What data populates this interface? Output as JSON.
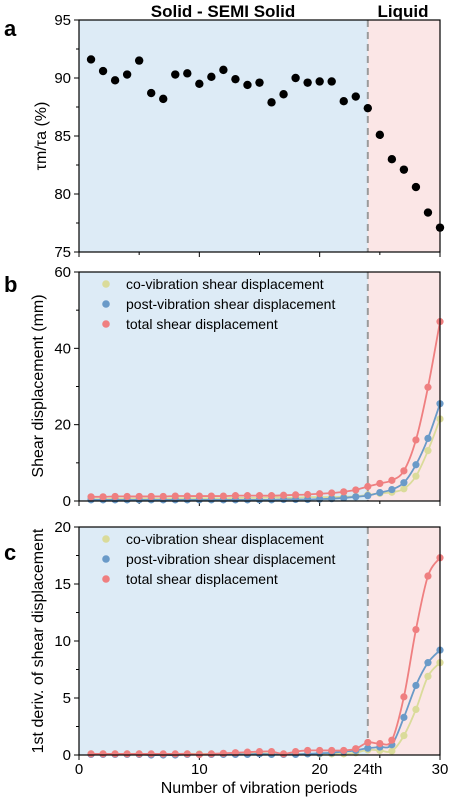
{
  "colors": {
    "solid_region": "#ddebf6",
    "liquid_region": "#fbe6e6",
    "co": "#dadb9a",
    "post": "#6a9ac8",
    "total": "#ef7f80",
    "dashed_line": "#9a9a9a",
    "points_a": "#000000"
  },
  "chart_data": [
    {
      "type": "scatter",
      "panel": "a",
      "region_labels": [
        "Solid - SEMI Solid",
        "Liquid"
      ],
      "boundary_x": 24,
      "xlim": [
        0,
        30
      ],
      "ylim": [
        75,
        95
      ],
      "yticks": [
        75,
        80,
        85,
        90,
        95
      ],
      "ylabel": "τm/τa (%)",
      "series": [
        {
          "x": [
            1,
            2,
            3,
            4,
            5,
            6,
            7,
            8,
            9,
            10,
            11,
            12,
            13,
            14,
            15,
            16,
            17,
            18,
            19,
            20,
            21,
            22,
            23,
            24,
            25,
            26,
            27,
            28,
            29,
            30
          ],
          "values": [
            91.6,
            90.6,
            89.8,
            90.3,
            91.5,
            88.7,
            88.2,
            90.3,
            90.4,
            89.5,
            90.1,
            90.7,
            89.9,
            89.4,
            89.6,
            87.9,
            88.6,
            90.0,
            89.6,
            89.7,
            89.7,
            88.0,
            88.4,
            87.4,
            85.1,
            83.0,
            82.1,
            80.6,
            78.4,
            77.1
          ]
        }
      ]
    },
    {
      "type": "line",
      "panel": "b",
      "boundary_x": 24,
      "xlim": [
        0,
        30
      ],
      "ylim": [
        0,
        60
      ],
      "yticks": [
        0,
        20,
        40,
        60
      ],
      "ylabel": "Shear displacement (mm)",
      "x": [
        1,
        2,
        3,
        4,
        5,
        6,
        7,
        8,
        9,
        10,
        11,
        12,
        13,
        14,
        15,
        16,
        17,
        18,
        19,
        20,
        21,
        22,
        23,
        24,
        25,
        26,
        27,
        28,
        29,
        30
      ],
      "series": [
        {
          "name": "co-vibration shear displacement",
          "color_key": "co",
          "values": [
            0.5,
            0.5,
            0.6,
            0.6,
            0.6,
            0.6,
            0.6,
            0.7,
            0.7,
            0.7,
            0.7,
            0.7,
            0.8,
            0.8,
            0.8,
            0.9,
            0.9,
            0.9,
            1.0,
            1.0,
            1.0,
            1.1,
            1.2,
            1.6,
            2.0,
            2.3,
            3.2,
            6.5,
            13.2,
            21.5
          ]
        },
        {
          "name": "post-vibration shear displacement",
          "color_key": "post",
          "values": [
            0.3,
            0.3,
            0.3,
            0.3,
            0.3,
            0.3,
            0.3,
            0.3,
            0.3,
            0.3,
            0.3,
            0.3,
            0.3,
            0.3,
            0.3,
            0.3,
            0.4,
            0.4,
            0.4,
            0.5,
            0.6,
            0.8,
            1.1,
            1.4,
            2.2,
            3.0,
            4.8,
            9.5,
            16.4,
            25.5
          ]
        },
        {
          "name": "total shear displacement",
          "color_key": "total",
          "values": [
            1.1,
            1.1,
            1.2,
            1.2,
            1.2,
            1.2,
            1.2,
            1.3,
            1.3,
            1.3,
            1.3,
            1.3,
            1.4,
            1.4,
            1.4,
            1.4,
            1.5,
            1.6,
            1.7,
            1.9,
            2.1,
            2.4,
            2.9,
            3.8,
            4.6,
            5.4,
            7.9,
            16.0,
            29.8,
            47.0
          ]
        }
      ],
      "legend_position": "top-left"
    },
    {
      "type": "line",
      "panel": "c",
      "boundary_x": 24,
      "xlim": [
        0,
        30
      ],
      "ylim": [
        0,
        20
      ],
      "yticks": [
        0,
        5,
        10,
        15,
        20
      ],
      "xticks": [
        0,
        10,
        20,
        30
      ],
      "boundary_label": "24th",
      "xlabel": "Number of vibration periods",
      "ylabel": "1st deriv. of shear displacement",
      "x": [
        1,
        2,
        3,
        4,
        5,
        6,
        7,
        8,
        9,
        10,
        11,
        12,
        13,
        14,
        15,
        16,
        17,
        18,
        19,
        20,
        21,
        22,
        23,
        24,
        25,
        26,
        27,
        28,
        29,
        30
      ],
      "series": [
        {
          "name": "co-vibration shear displacement",
          "color_key": "co",
          "values": [
            0.1,
            0.1,
            0.1,
            0.1,
            0.1,
            0.05,
            0.05,
            0.05,
            0.1,
            0.1,
            0.1,
            0.1,
            0.1,
            0.1,
            0.15,
            0.1,
            0.1,
            0.1,
            0.1,
            0.1,
            0.1,
            0.1,
            0.2,
            0.45,
            0.4,
            0.35,
            1.7,
            4.0,
            6.9,
            8.1
          ]
        },
        {
          "name": "post-vibration shear displacement",
          "color_key": "post",
          "values": [
            0.05,
            0.05,
            0.05,
            0.05,
            0.05,
            0.0,
            0.0,
            0.0,
            0.05,
            0.05,
            0.05,
            0.05,
            0.05,
            0.05,
            0.1,
            0.05,
            0.05,
            0.05,
            0.1,
            0.15,
            0.2,
            0.3,
            0.4,
            0.6,
            0.7,
            0.9,
            3.3,
            6.1,
            8.1,
            9.2
          ]
        },
        {
          "name": "total shear displacement",
          "color_key": "total",
          "values": [
            0.1,
            0.1,
            0.1,
            0.1,
            0.1,
            0.1,
            0.1,
            0.1,
            0.1,
            0.05,
            0.1,
            0.15,
            0.2,
            0.25,
            0.3,
            0.3,
            0.1,
            0.3,
            0.4,
            0.4,
            0.4,
            0.4,
            0.55,
            1.1,
            1.0,
            1.3,
            5.1,
            11.0,
            15.7,
            17.3
          ]
        }
      ],
      "legend_position": "top-left"
    }
  ]
}
